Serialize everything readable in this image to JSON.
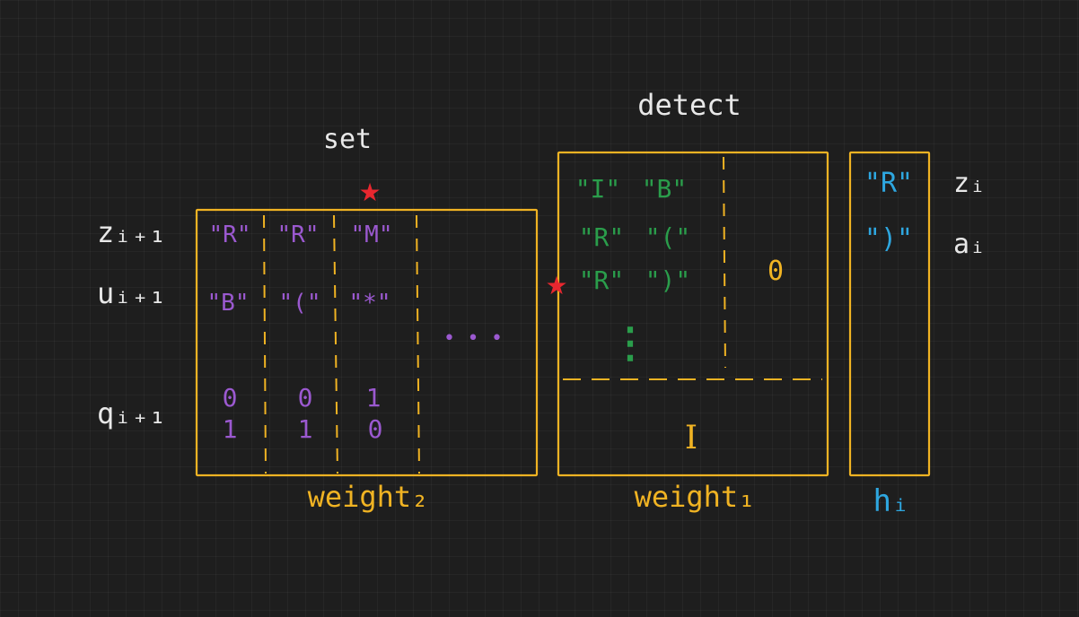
{
  "colors": {
    "background": "#1e1e1e",
    "text": "#e8e8e8",
    "box": "#f0b323",
    "purple": "#9b59d0",
    "green": "#2a9d4b",
    "blue": "#2ea7e0",
    "star": "#e8272f"
  },
  "labels": {
    "set": "set",
    "detect": "detect",
    "weight2": "weight₂",
    "weight1": "weight₁",
    "h": "hᵢ"
  },
  "rows_left": {
    "z": "zᵢ₊₁",
    "u": "uᵢ₊₁",
    "q": "qᵢ₊₁"
  },
  "weight2": {
    "columns": [
      {
        "z": "\"R\"",
        "u": "\"B\"",
        "q1": "0",
        "q2": "1"
      },
      {
        "z": "\"R\"",
        "u": "\"(\"",
        "q1": "0",
        "q2": "1"
      },
      {
        "z": "\"M\"",
        "u": "\"*\"",
        "q1": "1",
        "q2": "0"
      }
    ],
    "ellipsis": "• • •"
  },
  "weight1": {
    "col1": [
      "\"I\"",
      "\"R\"",
      "\"R\""
    ],
    "col2": [
      "\"B\"",
      "\"(\"",
      "\")\""
    ],
    "vdots": "⋮",
    "zero": "0",
    "identity": "I"
  },
  "h": {
    "z_val": "\"R\"",
    "a_val": "\")\"",
    "z_label": "zᵢ",
    "a_label": "aᵢ"
  },
  "stars": {
    "top": "★",
    "side": "★"
  }
}
